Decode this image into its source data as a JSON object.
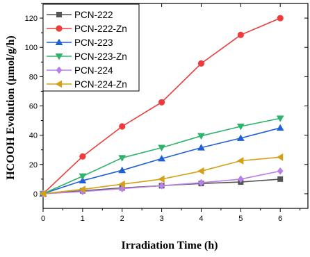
{
  "chart_data": {
    "type": "line",
    "xlabel": "Irradiation Time (h)",
    "ylabel": "HCOOH Evolution (µmol/g/h)",
    "xlim": [
      0,
      6.7
    ],
    "ylim": [
      -10,
      130
    ],
    "xticks": [
      0,
      1,
      2,
      3,
      4,
      5,
      6
    ],
    "yticks": [
      0,
      20,
      40,
      60,
      80,
      100,
      120
    ],
    "grid": false,
    "legend_position": "top-left",
    "x": [
      0,
      1,
      2,
      3,
      4,
      5,
      6
    ],
    "series": [
      {
        "name": "PCN-222",
        "color": "#555555",
        "marker": "square",
        "values": [
          0,
          2,
          4,
          5.5,
          7,
          8,
          10
        ]
      },
      {
        "name": "PCN-222-Zn",
        "color": "#ee3b3b",
        "marker": "circle",
        "values": [
          0,
          25.5,
          46,
          62.5,
          89,
          108.5,
          120
        ]
      },
      {
        "name": "PCN-223",
        "color": "#1f5fd6",
        "marker": "triangle-up",
        "values": [
          0,
          9,
          16,
          24,
          31.5,
          38,
          45
        ]
      },
      {
        "name": "PCN-223-Zn",
        "color": "#2fb36b",
        "marker": "triangle-down",
        "values": [
          0,
          12,
          24.5,
          31.5,
          39.5,
          46,
          51.5
        ]
      },
      {
        "name": "PCN-224",
        "color": "#b980ea",
        "marker": "diamond",
        "values": [
          0,
          1.5,
          3.5,
          5.5,
          7.5,
          10,
          15.5
        ]
      },
      {
        "name": "PCN-224-Zn",
        "color": "#d4a017",
        "marker": "triangle-left",
        "values": [
          0,
          3,
          6.5,
          10,
          15.5,
          22.5,
          25
        ]
      }
    ]
  }
}
